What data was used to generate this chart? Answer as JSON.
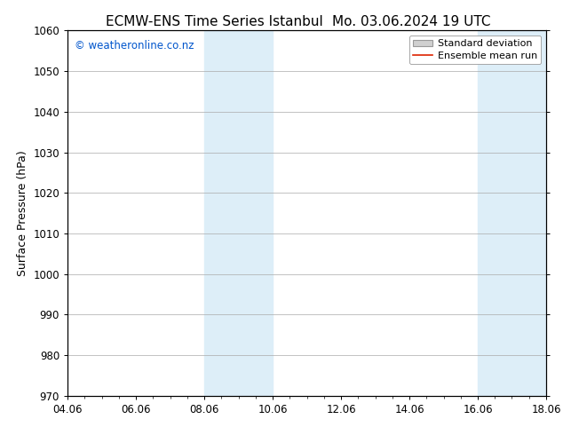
{
  "title_left": "ECMW-ENS Time Series Istanbul",
  "title_right": "Mo. 03.06.2024 19 UTC",
  "ylabel": "Surface Pressure (hPa)",
  "xlabel_ticks": [
    "04.06",
    "06.06",
    "08.06",
    "10.06",
    "12.06",
    "14.06",
    "16.06",
    "18.06"
  ],
  "xtick_positions": [
    0,
    2,
    4,
    6,
    8,
    10,
    12,
    14
  ],
  "xlim": [
    0,
    14
  ],
  "ylim": [
    970,
    1060
  ],
  "yticks": [
    970,
    980,
    990,
    1000,
    1010,
    1020,
    1030,
    1040,
    1050,
    1060
  ],
  "shaded_bands": [
    {
      "x_start": 4,
      "x_end": 6,
      "color": "#ddeef8"
    },
    {
      "x_start": 12,
      "x_end": 14,
      "color": "#ddeef8"
    }
  ],
  "watermark_text": "© weatheronline.co.nz",
  "watermark_color": "#0055cc",
  "legend_std_label": "Standard deviation",
  "legend_mean_label": "Ensemble mean run",
  "legend_std_facecolor": "#d0d0d0",
  "legend_std_edgecolor": "#999999",
  "legend_mean_color": "#dd2200",
  "bg_color": "#ffffff",
  "tick_label_fontsize": 8.5,
  "title_fontsize": 11,
  "ylabel_fontsize": 9,
  "watermark_fontsize": 8.5,
  "legend_fontsize": 8
}
